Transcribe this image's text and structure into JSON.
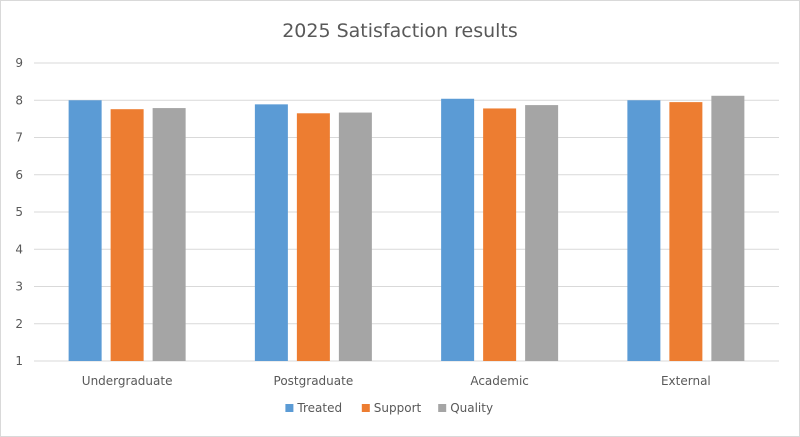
{
  "chart_data": {
    "type": "bar",
    "title": "2025 Satisfaction results",
    "xlabel": "",
    "ylabel": "",
    "categories": [
      "Undergraduate",
      "Postgraduate",
      "Academic",
      "External"
    ],
    "series": [
      {
        "name": "Treated",
        "color": "#5b9bd5",
        "values": [
          8.0,
          7.89,
          8.04,
          8.0
        ]
      },
      {
        "name": "Support",
        "color": "#ed7d31",
        "values": [
          7.76,
          7.65,
          7.78,
          7.95
        ]
      },
      {
        "name": "Quality",
        "color": "#a5a5a5",
        "values": [
          7.79,
          7.67,
          7.87,
          8.12
        ]
      }
    ],
    "ylim": [
      1,
      9
    ],
    "yticks": [
      "1",
      "2",
      "3",
      "4",
      "5",
      "6",
      "7",
      "8",
      "9"
    ],
    "grid": true,
    "legend_position": "bottom"
  }
}
